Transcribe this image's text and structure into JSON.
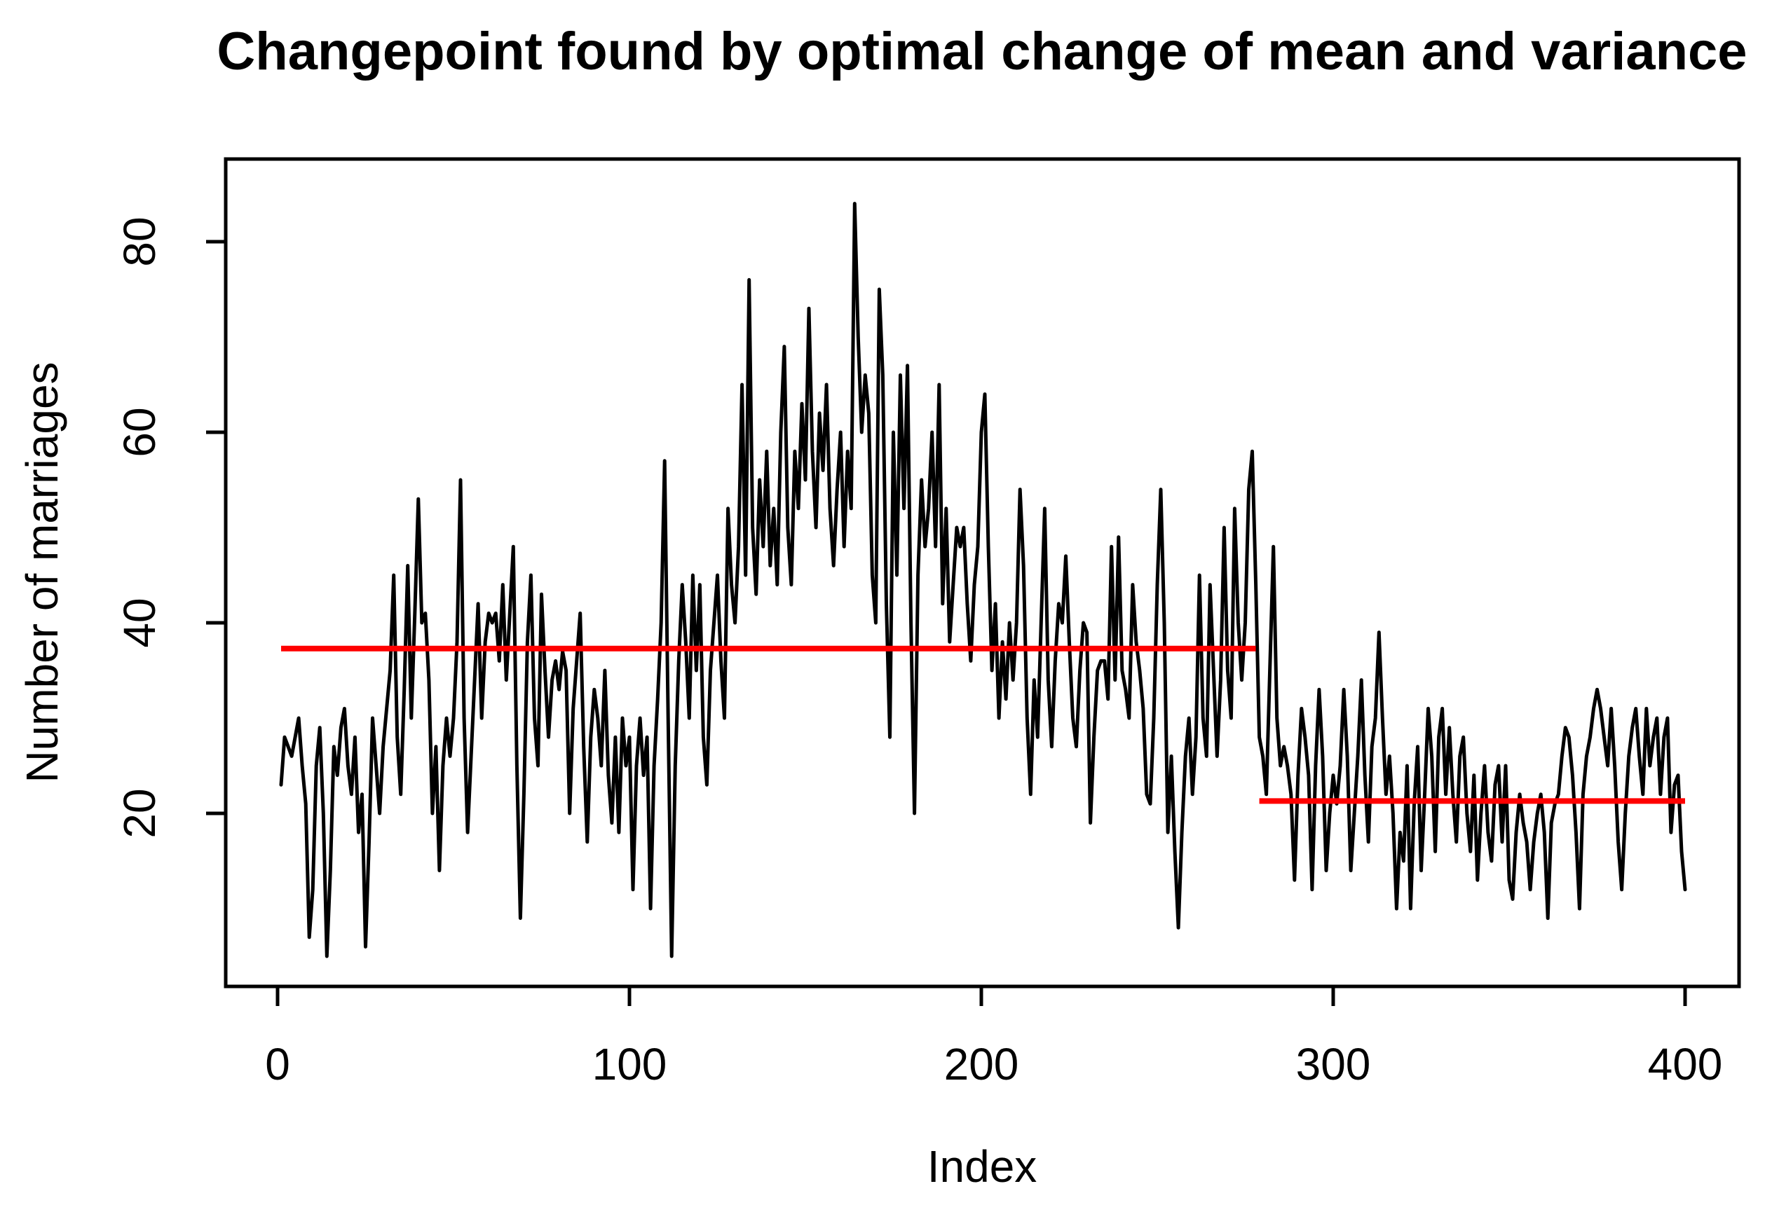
{
  "chart_data": {
    "type": "line",
    "title": "Changepoint found by optimal change of mean and variance",
    "xlabel": "Index",
    "ylabel": "Number of marriages",
    "x_tick_labels": [
      "0",
      "100",
      "200",
      "300",
      "400"
    ],
    "x_tick_values": [
      0,
      100,
      200,
      300,
      400
    ],
    "y_tick_labels": [
      "20",
      "40",
      "60",
      "80"
    ],
    "y_tick_values": [
      20,
      40,
      60,
      80
    ],
    "xlim": [
      -14.7,
      415.3
    ],
    "ylim": [
      1.8,
      88.7
    ],
    "grid": "off",
    "legend": "none",
    "series_color": "#000000",
    "mean_line_color": "#FF0000",
    "changepoint_index": 278,
    "segment_means": [
      {
        "from": 1,
        "to": 278,
        "mean": 37.3
      },
      {
        "from": 279,
        "to": 400,
        "mean": 21.3
      }
    ],
    "x_start_index": 1,
    "values": [
      23,
      28,
      27,
      26,
      28,
      30,
      25,
      21,
      7,
      12,
      25,
      29,
      20,
      5,
      14,
      27,
      24,
      29,
      31,
      25,
      22,
      28,
      18,
      22,
      6,
      17,
      30,
      25,
      20,
      27,
      31,
      35,
      45,
      28,
      22,
      33,
      46,
      30,
      41,
      53,
      40,
      41,
      34,
      20,
      27,
      14,
      25,
      30,
      26,
      30,
      38,
      55,
      30,
      18,
      26,
      34,
      42,
      30,
      38,
      41,
      40,
      41,
      36,
      44,
      34,
      41,
      48,
      25,
      9,
      22,
      38,
      45,
      30,
      25,
      43,
      35,
      28,
      34,
      36,
      33,
      37,
      35,
      20,
      31,
      36,
      41,
      27,
      17,
      28,
      33,
      30,
      25,
      35,
      24,
      19,
      28,
      18,
      30,
      25,
      28,
      12,
      25,
      30,
      24,
      28,
      10,
      25,
      32,
      40,
      57,
      30,
      5,
      25,
      36,
      44,
      38,
      30,
      45,
      35,
      44,
      28,
      23,
      35,
      40,
      45,
      36,
      30,
      52,
      44,
      40,
      48,
      65,
      45,
      76,
      50,
      43,
      55,
      48,
      58,
      46,
      52,
      44,
      60,
      69,
      50,
      44,
      58,
      52,
      63,
      55,
      73,
      58,
      50,
      62,
      56,
      65,
      52,
      46,
      54,
      60,
      48,
      58,
      52,
      84,
      70,
      60,
      66,
      62,
      45,
      40,
      75,
      66,
      42,
      28,
      60,
      45,
      66,
      52,
      67,
      40,
      20,
      45,
      55,
      48,
      52,
      60,
      48,
      65,
      42,
      52,
      38,
      44,
      50,
      48,
      50,
      42,
      36,
      44,
      48,
      60,
      64,
      48,
      35,
      42,
      30,
      38,
      32,
      40,
      34,
      40,
      54,
      46,
      30,
      22,
      34,
      28,
      40,
      52,
      34,
      27,
      36,
      42,
      40,
      47,
      38,
      30,
      27,
      35,
      40,
      39,
      19,
      28,
      35,
      36,
      36,
      32,
      48,
      34,
      49,
      35,
      33,
      30,
      44,
      38,
      35,
      31,
      22,
      21,
      30,
      44,
      54,
      40,
      18,
      26,
      16,
      8,
      18,
      26,
      30,
      22,
      28,
      45,
      30,
      26,
      44,
      35,
      26,
      34,
      50,
      35,
      30,
      52,
      40,
      34,
      40,
      54,
      58,
      44,
      28,
      26,
      22,
      35,
      48,
      30,
      25,
      27,
      25,
      22,
      13,
      24,
      31,
      28,
      24,
      12,
      25,
      33,
      26,
      14,
      20,
      24,
      21,
      25,
      33,
      26,
      14,
      20,
      26,
      34,
      24,
      17,
      27,
      30,
      39,
      30,
      22,
      26,
      20,
      10,
      18,
      15,
      25,
      10,
      21,
      27,
      14,
      22,
      31,
      26,
      16,
      28,
      31,
      22,
      29,
      22,
      17,
      26,
      28,
      20,
      16,
      24,
      13,
      20,
      25,
      18,
      15,
      23,
      25,
      17,
      25,
      13,
      11,
      18,
      22,
      19,
      17,
      12,
      17,
      20,
      22,
      18,
      9,
      19,
      21,
      22,
      26,
      29,
      28,
      24,
      18,
      10,
      22,
      26,
      28,
      31,
      33,
      31,
      28,
      25,
      31,
      25,
      17,
      12,
      20,
      26,
      29,
      31,
      26,
      22,
      31,
      25,
      28,
      30,
      22,
      28,
      30,
      18,
      23,
      24,
      16,
      12
    ]
  }
}
